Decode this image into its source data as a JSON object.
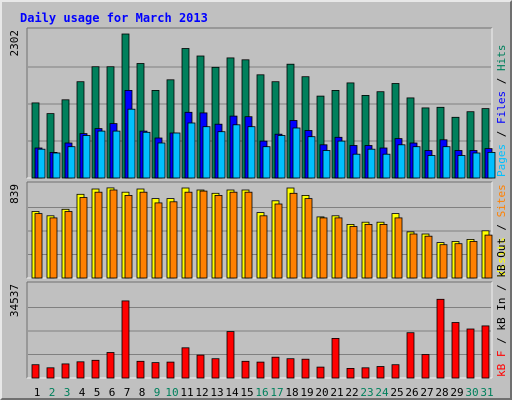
{
  "chart_data": {
    "type": "bar",
    "title": "Daily usage for March 2013",
    "categories": [
      "1",
      "2",
      "3",
      "4",
      "5",
      "6",
      "7",
      "8",
      "9",
      "10",
      "11",
      "12",
      "13",
      "14",
      "15",
      "16",
      "17",
      "18",
      "19",
      "20",
      "21",
      "22",
      "23",
      "24",
      "25",
      "26",
      "27",
      "28",
      "29",
      "30",
      "31"
    ],
    "weekend_categories": [
      "2",
      "3",
      "9",
      "10",
      "16",
      "17",
      "23",
      "24",
      "30",
      "31"
    ],
    "panels": [
      {
        "id": "top",
        "max_label": "2302",
        "ymax": 2302,
        "legend": [
          "Pages",
          "Files",
          "Hits"
        ],
        "series": [
          {
            "name": "Hits",
            "color": "#00805c",
            "values": [
              1200,
              1030,
              1250,
              1540,
              1780,
              1780,
              2302,
              1830,
              1400,
              1570,
              2070,
              1950,
              1770,
              1920,
              1890,
              1650,
              1540,
              1820,
              1620,
              1310,
              1400,
              1520,
              1320,
              1380,
              1510,
              1280,
              1120,
              1130,
              970,
              1060,
              1110
            ]
          },
          {
            "name": "Files",
            "color": "#0000ff",
            "values": [
              480,
              410,
              560,
              710,
              790,
              870,
              1400,
              750,
              640,
              720,
              1050,
              1040,
              860,
              990,
              980,
              590,
              700,
              920,
              760,
              530,
              650,
              520,
              520,
              480,
              630,
              560,
              440,
              610,
              440,
              440,
              470
            ]
          },
          {
            "name": "Pages",
            "color": "#00c0ff",
            "values": [
              460,
              400,
              500,
              680,
              750,
              750,
              1100,
              730,
              560,
              720,
              880,
              820,
              740,
              850,
              820,
              500,
              680,
              800,
              660,
              440,
              590,
              380,
              460,
              380,
              530,
              500,
              360,
              500,
              360,
              400,
              410
            ]
          }
        ]
      },
      {
        "id": "middle",
        "max_label": "839",
        "ymax": 839,
        "legend": [
          "Visits",
          "Sites"
        ],
        "series": [
          {
            "name": "Visits",
            "color": "#ffff00",
            "values": [
              620,
              580,
              640,
              780,
              830,
              840,
              800,
              830,
              740,
              740,
              839,
              820,
              790,
              820,
              820,
              610,
              720,
              839,
              770,
              570,
              580,
              500,
              520,
              520,
              600,
              430,
              410,
              330,
              340,
              360,
              440
            ]
          },
          {
            "name": "Sites",
            "color": "#ff8000",
            "values": [
              600,
              560,
              620,
              750,
              800,
              820,
              770,
              800,
              700,
              710,
              800,
              810,
              770,
              800,
              800,
              580,
              690,
              790,
              740,
              560,
              560,
              480,
              500,
              500,
              560,
              410,
              390,
              310,
              320,
              340,
              400
            ]
          }
        ]
      },
      {
        "id": "bottom",
        "max_label": "34537",
        "ymax": 34537,
        "legend": [
          "kB F",
          "kB In",
          "kB Out"
        ],
        "series": [
          {
            "name": "kB F",
            "color": "#ff0000",
            "values": [
              5100,
              3900,
              5400,
              6200,
              6800,
              9800,
              29600,
              6400,
              5900,
              6100,
              11600,
              8800,
              7400,
              17800,
              6400,
              6100,
              8000,
              7400,
              7200,
              4200,
              15200,
              3700,
              3900,
              4400,
              5100,
              17400,
              9000,
              30200,
              21300,
              18800,
              20000
            ]
          }
        ]
      }
    ]
  }
}
